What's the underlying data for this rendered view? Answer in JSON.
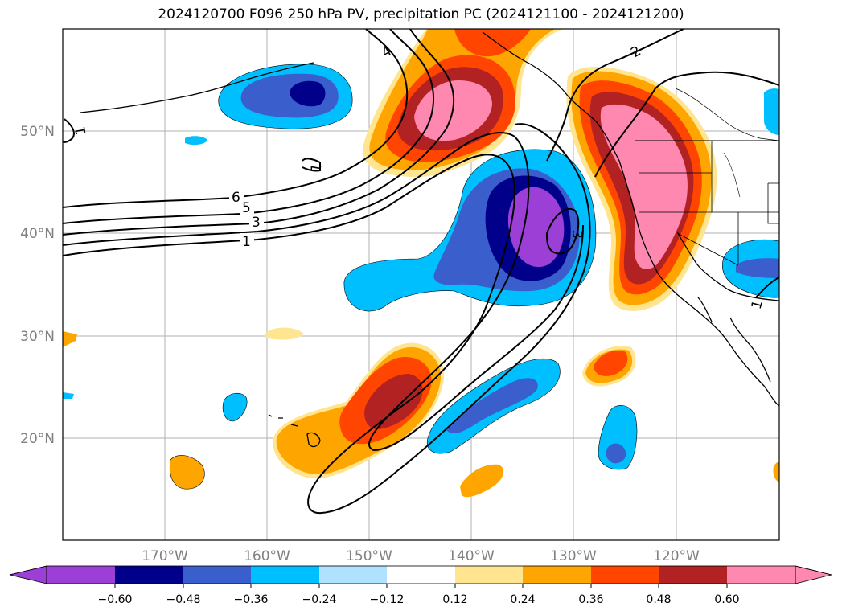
{
  "title": "2024120700 F096 250 hPa PV, precipitation PC (2024121100 - 2024121200)",
  "colors": {
    "neg_060_plus": "#9b3fd6",
    "neg_048": "#00008b",
    "neg_036": "#3a5fcd",
    "neg_024": "#00bfff",
    "neg_012": "#b0e2ff",
    "neutral": "#ffffff",
    "pos_012": "#ffe58f",
    "pos_024": "#ffa500",
    "pos_036": "#ff4500",
    "pos_048": "#b22222",
    "pos_060_plus": "#ff88b0",
    "grid": "#b0b0b0",
    "coast": "#000000"
  },
  "axes": {
    "lat_labels": [
      "50°N",
      "40°N",
      "30°N",
      "20°N"
    ],
    "lon_labels": [
      "170°W",
      "160°W",
      "150°W",
      "140°W",
      "130°W",
      "120°W"
    ]
  },
  "colorbar": {
    "ticks": [
      "−0.60",
      "−0.48",
      "−0.36",
      "−0.24",
      "−0.12",
      "0.12",
      "0.24",
      "0.36",
      "0.48",
      "0.60"
    ]
  },
  "contour_labels": [
    "6",
    "5",
    "3",
    "1",
    "4",
    "2",
    "1",
    "1",
    "3",
    "1"
  ]
}
